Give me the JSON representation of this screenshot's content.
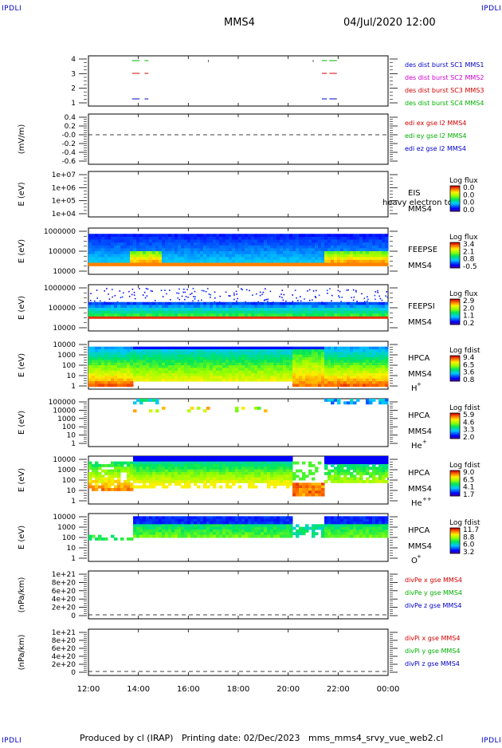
{
  "header": {
    "corner_tag": "IPDLI",
    "spacecraft": "MMS4",
    "datetime": "04/Jul/2020 12:00"
  },
  "footer": {
    "produced_by": "Produced by cl (IRAP)",
    "printing_date": "Printing date: 02/Dec/2023",
    "plot_name": "mms_mms4_srvy_vue_web2.cl"
  },
  "time_axis": {
    "ticks": [
      "12:00",
      "14:00",
      "16:00",
      "18:00",
      "20:00",
      "22:00",
      "00:00"
    ],
    "range_hours": [
      12,
      24
    ]
  },
  "panels": [
    {
      "id": "burst",
      "ylabel": "",
      "yticks": [
        "4",
        "3",
        "2",
        "1"
      ],
      "right_labels": [
        {
          "text": "des dist burst SC1 MMS1",
          "color": "#0000c8"
        },
        {
          "text": "des dist burst SC2 MMS2",
          "color": "#d000d0"
        },
        {
          "text": "des dist burst SC3 MMS3",
          "color": "#d00000"
        },
        {
          "text": "des dist burst SC4 MMS4",
          "color": "#00b000"
        }
      ]
    },
    {
      "id": "edi",
      "ylabel": "(mV/m)",
      "yticks": [
        "0.4",
        "0.2",
        "-0.0",
        "-0.2",
        "-0.4",
        "-0.6"
      ],
      "right_labels": [
        {
          "text": "edi ex gse l2 MMS4",
          "color": "#d00000"
        },
        {
          "text": "edi ey gse l2 MMS4",
          "color": "#00b000"
        },
        {
          "text": "edi ez gse l2 MMS4",
          "color": "#0000c8"
        }
      ]
    },
    {
      "id": "eis",
      "ylabel": "E (eV)",
      "yticks": [
        "1e+07",
        "1e+06",
        "1e+05",
        "1e+04"
      ],
      "inst": [
        "EIS",
        "MMS4"
      ],
      "overlay": "heavy electron to",
      "cbar_title": "Log flux",
      "cbar_ticks": [
        "0.0",
        "0.0",
        "0.0",
        "0.0"
      ]
    },
    {
      "id": "feepse",
      "ylabel": "E (eV)",
      "yticks": [
        "1000000",
        "100000",
        "10000"
      ],
      "inst": [
        "FEEPSE",
        "MMS4"
      ],
      "cbar_title": "Log flux",
      "cbar_ticks": [
        "3.4",
        "2.1",
        "0.8",
        "-0.5"
      ]
    },
    {
      "id": "feepsi",
      "ylabel": "E (eV)",
      "yticks": [
        "1000000",
        "100000",
        "10000"
      ],
      "inst": [
        "FEEPSI",
        "MMS4"
      ],
      "cbar_title": "Log flux",
      "cbar_ticks": [
        "2.9",
        "2.0",
        "1.1",
        "0.2"
      ]
    },
    {
      "id": "hpca_h",
      "ylabel": "E (eV)",
      "yticks": [
        "10000",
        "1000",
        "100",
        "10",
        "1"
      ],
      "inst": [
        "HPCA",
        "MMS4"
      ],
      "species": "H",
      "charge": "+",
      "cbar_title": "Log fdist",
      "cbar_ticks": [
        "9.4",
        "6.5",
        "3.6",
        "0.8"
      ]
    },
    {
      "id": "hpca_he1",
      "ylabel": "E (eV)",
      "yticks": [
        "100000",
        "10000",
        "1000",
        "100",
        "10",
        "1"
      ],
      "inst": [
        "HPCA",
        "MMS4"
      ],
      "species": "He",
      "charge": "+",
      "cbar_title": "Log fdist",
      "cbar_ticks": [
        "5.9",
        "4.6",
        "3.3",
        "2.0"
      ]
    },
    {
      "id": "hpca_he2",
      "ylabel": "E (eV)",
      "yticks": [
        "10000",
        "1000",
        "100",
        "10",
        "1"
      ],
      "inst": [
        "HPCA",
        "MMS4"
      ],
      "species": "He",
      "charge": "++",
      "cbar_title": "Log fdist",
      "cbar_ticks": [
        "9.0",
        "6.5",
        "4.1",
        "1.7"
      ]
    },
    {
      "id": "hpca_o",
      "ylabel": "E (eV)",
      "yticks": [
        "10000",
        "1000",
        "100",
        "10",
        "1"
      ],
      "inst": [
        "HPCA",
        "MMS4"
      ],
      "species": "O",
      "charge": "+",
      "cbar_title": "Log fdist",
      "cbar_ticks": [
        "11.7",
        "8.8",
        "6.0",
        "3.2"
      ]
    },
    {
      "id": "divpe",
      "ylabel": "(nPa/km)",
      "yticks": [
        "1e+21",
        "8e+20",
        "6e+20",
        "4e+20",
        "2e+20",
        "0"
      ],
      "right_labels": [
        {
          "text": "divPe x gse MMS4",
          "color": "#d00000"
        },
        {
          "text": "divPe y gse MMS4",
          "color": "#00b000"
        },
        {
          "text": "divPe z gse MMS4",
          "color": "#0000c8"
        }
      ]
    },
    {
      "id": "divpi",
      "ylabel": "(nPa/km)",
      "yticks": [
        "1e+21",
        "8e+20",
        "6e+20",
        "4e+20",
        "2e+20",
        "0"
      ],
      "right_labels": [
        {
          "text": "divPi x gse MMS4",
          "color": "#d00000"
        },
        {
          "text": "divPi y gse MMS4",
          "color": "#00b000"
        },
        {
          "text": "divPi z gse MMS4",
          "color": "#0000c8"
        }
      ]
    }
  ],
  "chart_data": {
    "type": "heatmap",
    "title": "MMS4",
    "x_range_hours": [
      12,
      24
    ],
    "burst_intervals": [
      {
        "sc": 4,
        "start": 13.75,
        "end": 14.05,
        "color": "#00b000"
      },
      {
        "sc": 4,
        "start": 14.25,
        "end": 14.4,
        "color": "#00b000"
      },
      {
        "sc": 4,
        "start": 21.35,
        "end": 21.55,
        "color": "#00b000"
      },
      {
        "sc": 4,
        "start": 21.65,
        "end": 21.95,
        "color": "#00b000"
      },
      {
        "sc": 3,
        "start": 13.75,
        "end": 14.05,
        "color": "#d00000"
      },
      {
        "sc": 3,
        "start": 14.25,
        "end": 14.4,
        "color": "#d00000"
      },
      {
        "sc": 3,
        "start": 21.35,
        "end": 21.55,
        "color": "#d00000"
      },
      {
        "sc": 3,
        "start": 21.65,
        "end": 21.95,
        "color": "#d00000"
      },
      {
        "sc": 1,
        "start": 13.75,
        "end": 14.05,
        "color": "#0000c8"
      },
      {
        "sc": 1,
        "start": 14.25,
        "end": 14.4,
        "color": "#0000c8"
      },
      {
        "sc": 1,
        "start": 21.35,
        "end": 21.55,
        "color": "#0000c8"
      },
      {
        "sc": 1,
        "start": 21.65,
        "end": 21.95,
        "color": "#0000c8"
      }
    ],
    "regions": [
      {
        "name": "quiet_low",
        "start": 12.0,
        "end": 13.8
      },
      {
        "name": "active",
        "start": 13.8,
        "end": 20.2
      },
      {
        "name": "dropout",
        "start": 20.2,
        "end": 21.4
      },
      {
        "name": "recovery",
        "start": 21.4,
        "end": 24.0
      }
    ]
  }
}
